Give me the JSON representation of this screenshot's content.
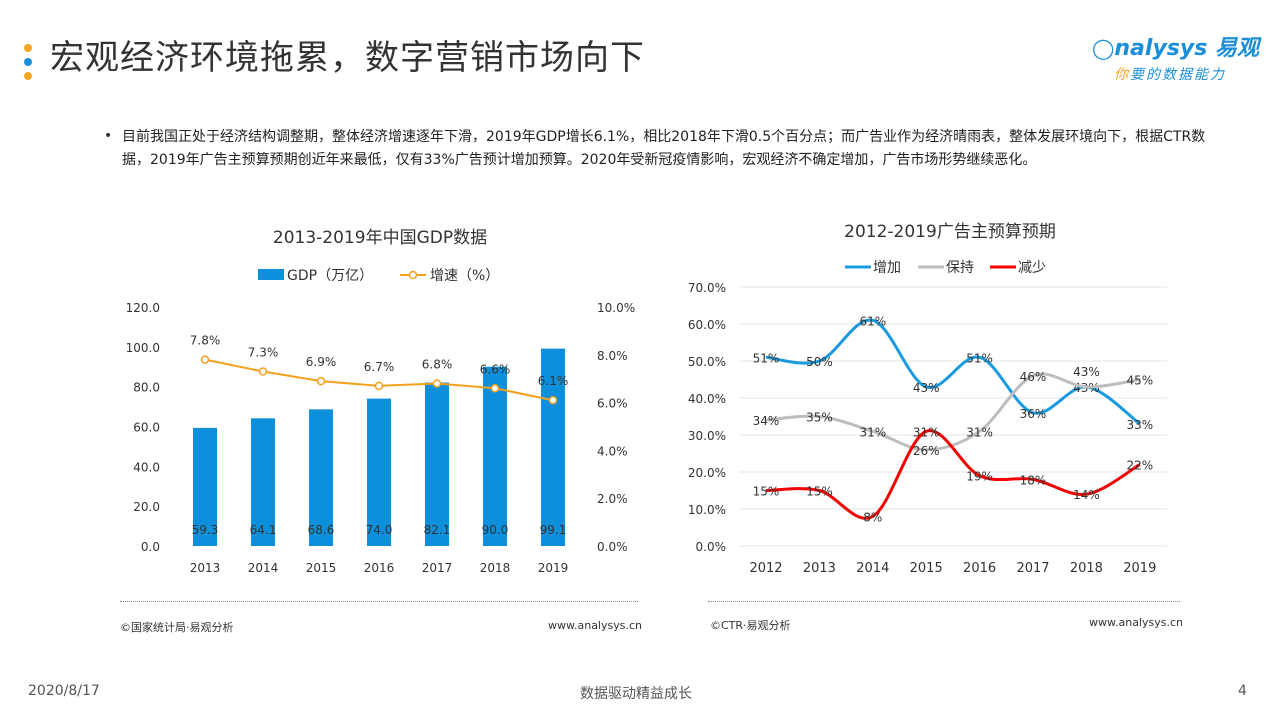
{
  "header": {
    "title": "宏观经济环境拖累，数字营销市场向下",
    "logo_top": "nalysys 易观",
    "logo_bottom_accent": "你",
    "logo_bottom": "要的数据能力"
  },
  "body": {
    "paragraph": "目前我国正处于经济结构调整期，整体经济增速逐年下滑，2019年GDP增长6.1%，相比2018年下滑0.5个百分点；而广告业作为经济晴雨表，整体发展环境向下，根据CTR数据，2019年广告主预算预期创近年来最低，仅有33%广告预计增加预算。2020年受新冠疫情影响，宏观经济不确定增加，广告市场形势继续恶化。"
  },
  "chart_data": [
    {
      "type": "bar",
      "title": "2013-2019年中国GDP数据",
      "categories": [
        "2013",
        "2014",
        "2015",
        "2016",
        "2017",
        "2018",
        "2019"
      ],
      "series": [
        {
          "name": "GDP（万亿）",
          "type": "bar",
          "axis": "left",
          "color": "#0e8fdb",
          "values": [
            59.3,
            64.1,
            68.6,
            74.0,
            82.1,
            90.0,
            99.1
          ],
          "labels": [
            "59.3",
            "64.1",
            "68.6",
            "74.0",
            "82.1",
            "90.0",
            "99.1"
          ]
        },
        {
          "name": "增速（%）",
          "type": "line",
          "axis": "right",
          "color": "#f5a01a",
          "values": [
            7.8,
            7.3,
            6.9,
            6.7,
            6.8,
            6.6,
            6.1
          ],
          "labels": [
            "7.8%",
            "7.3%",
            "6.9%",
            "6.7%",
            "6.8%",
            "6.6%",
            "6.1%"
          ]
        }
      ],
      "ylim_left": [
        0,
        120
      ],
      "yticks_left": [
        "0.0",
        "20.0",
        "40.0",
        "60.0",
        "80.0",
        "100.0",
        "120.0"
      ],
      "ylim_right": [
        0,
        10
      ],
      "yticks_right": [
        "0.0%",
        "2.0%",
        "4.0%",
        "6.0%",
        "8.0%",
        "10.0%"
      ],
      "grid": false,
      "legend": "top",
      "source": "©国家统计局·易观分析",
      "site": "www.analysys.cn"
    },
    {
      "type": "line",
      "title": "2012-2019广告主预算预期",
      "categories": [
        "2012",
        "2013",
        "2014",
        "2015",
        "2016",
        "2017",
        "2018",
        "2019"
      ],
      "series": [
        {
          "name": "增加",
          "color": "#1a9be0",
          "values": [
            51,
            50,
            61,
            43,
            51,
            36,
            43,
            33
          ]
        },
        {
          "name": "保持",
          "color": "#bdbdbd",
          "values": [
            34,
            35,
            31,
            26,
            31,
            46,
            43,
            45
          ]
        },
        {
          "name": "减少",
          "color": "#f40000",
          "values": [
            15,
            15,
            8,
            31,
            19,
            18,
            14,
            22
          ]
        }
      ],
      "ylim": [
        0,
        70
      ],
      "yticks": [
        "0.0%",
        "10.0%",
        "20.0%",
        "30.0%",
        "40.0%",
        "50.0%",
        "60.0%",
        "70.0%"
      ],
      "grid": true,
      "smooth": true,
      "legend": "top",
      "source": "©CTR·易观分析",
      "site": "www.analysys.cn"
    }
  ],
  "footer": {
    "date": "2020/8/17",
    "slogan": "数据驱动精益成长",
    "page": "4"
  }
}
